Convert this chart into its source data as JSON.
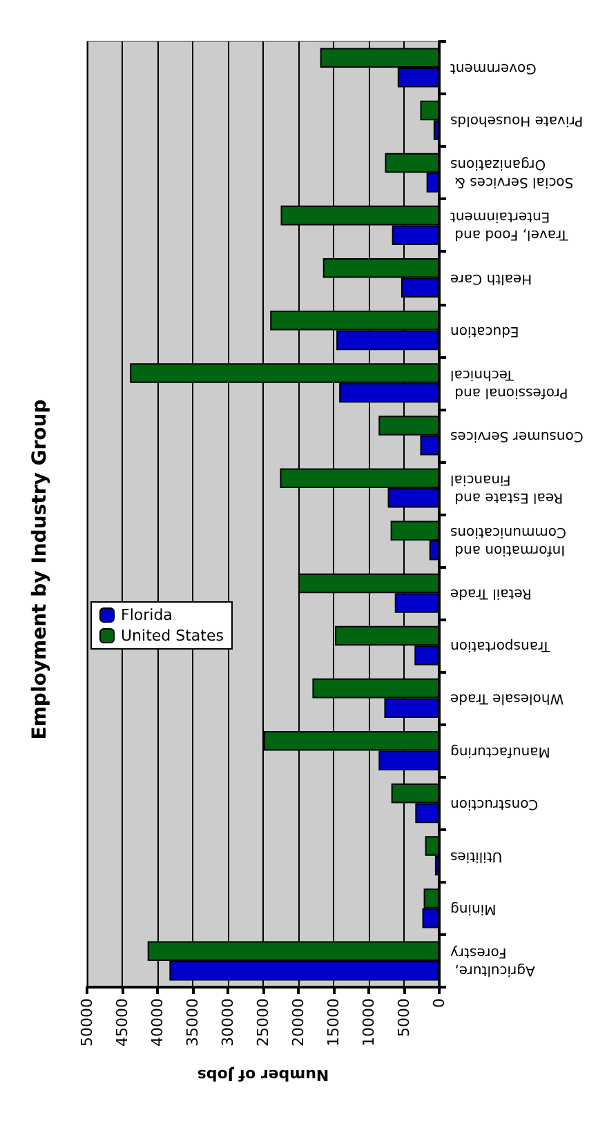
{
  "chart_data": {
    "type": "bar",
    "title": "Employment by Industry Group",
    "xlabel": "Number of Jobs",
    "orientation": "horizontal",
    "categories": [
      "Government",
      "Private Households",
      "Social Services & Organizations",
      "Travel, Food and Entertainment",
      "Health Care",
      "Education",
      "Professional and Technical",
      "Consumer Services",
      "Real Estate and Financial",
      "Information and Communications",
      "Retail Trade",
      "Transportation",
      "Wholesale Trade",
      "Manufacturing",
      "Construction",
      "Utilities",
      "Mining",
      "Agriculture, Forestry"
    ],
    "series": [
      {
        "name": "Florida",
        "color": "#0000cc",
        "values": [
          5900,
          800,
          1800,
          6700,
          5400,
          14600,
          14200,
          2700,
          7300,
          1400,
          6300,
          3500,
          7800,
          8600,
          3400,
          600,
          2400,
          38300
        ]
      },
      {
        "name": "United States",
        "color": "#006411",
        "values": [
          16900,
          2700,
          7700,
          22500,
          16500,
          24000,
          43900,
          8600,
          22600,
          6900,
          20000,
          14800,
          18000,
          24900,
          6800,
          2000,
          2200,
          41400
        ]
      }
    ],
    "xlim": [
      50000,
      0
    ],
    "xticks": [
      0,
      5000,
      10000,
      15000,
      20000,
      25000,
      30000,
      35000,
      40000,
      45000,
      50000
    ],
    "grid": "x",
    "legend": "left"
  }
}
